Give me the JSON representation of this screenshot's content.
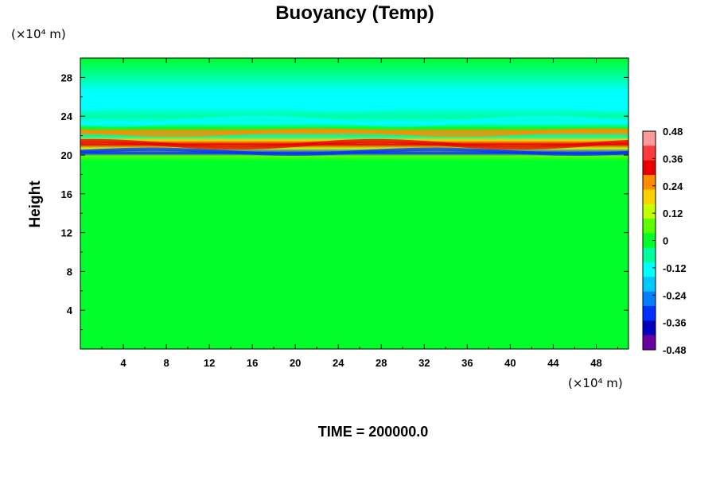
{
  "chart_data": {
    "type": "heatmap",
    "title": "Buoyancy (Temp)",
    "ylabel": "Height",
    "xlabel": "",
    "x_unit_label": "(×10⁴ m)",
    "y_unit_label": "(×10⁴ m)",
    "xlim": [
      0,
      51
    ],
    "ylim": [
      0,
      30
    ],
    "x_ticks": [
      4,
      8,
      12,
      16,
      20,
      24,
      28,
      32,
      36,
      40,
      44,
      48
    ],
    "y_ticks": [
      4,
      8,
      12,
      16,
      20,
      24,
      28
    ],
    "colorbar": {
      "min": -0.48,
      "max": 0.48,
      "tick_values": [
        0.48,
        0.36,
        0.24,
        0.12,
        0,
        -0.12,
        -0.24,
        -0.36,
        -0.48
      ],
      "tick_labels": [
        "0.48",
        "0.36",
        "0.24",
        "0.12",
        "0",
        "-0.12",
        "-0.24",
        "-0.36",
        "-0.48"
      ],
      "colors_high_to_low": [
        "#ff9a9a",
        "#ff3a3a",
        "#e80000",
        "#ff8c00",
        "#ffd000",
        "#c8ff00",
        "#5aff00",
        "#00ff2a",
        "#00ffa0",
        "#00ffff",
        "#00c8ff",
        "#0080ff",
        "#0030ff",
        "#0000c0",
        "#6a00a0"
      ]
    },
    "field_bands": [
      {
        "y": 0.0,
        "value": 0.02
      },
      {
        "y": 19.4,
        "value": 0.03
      },
      {
        "y": 19.9,
        "value": 0.06
      },
      {
        "y": 20.2,
        "value": -0.3
      },
      {
        "y": 20.7,
        "value": 0.12
      },
      {
        "y": 21.1,
        "value": 0.34
      },
      {
        "y": 21.5,
        "value": 0.2
      },
      {
        "y": 21.9,
        "value": -0.05
      },
      {
        "y": 22.4,
        "value": 0.28
      },
      {
        "y": 22.8,
        "value": 0.0
      },
      {
        "y": 23.3,
        "value": -0.12
      },
      {
        "y": 24.0,
        "value": -0.06
      },
      {
        "y": 25.0,
        "value": -0.13
      },
      {
        "y": 26.5,
        "value": -0.1
      },
      {
        "y": 28.0,
        "value": -0.04
      },
      {
        "y": 30.0,
        "value": -0.02
      }
    ]
  },
  "time_label": "TIME = 200000.0"
}
